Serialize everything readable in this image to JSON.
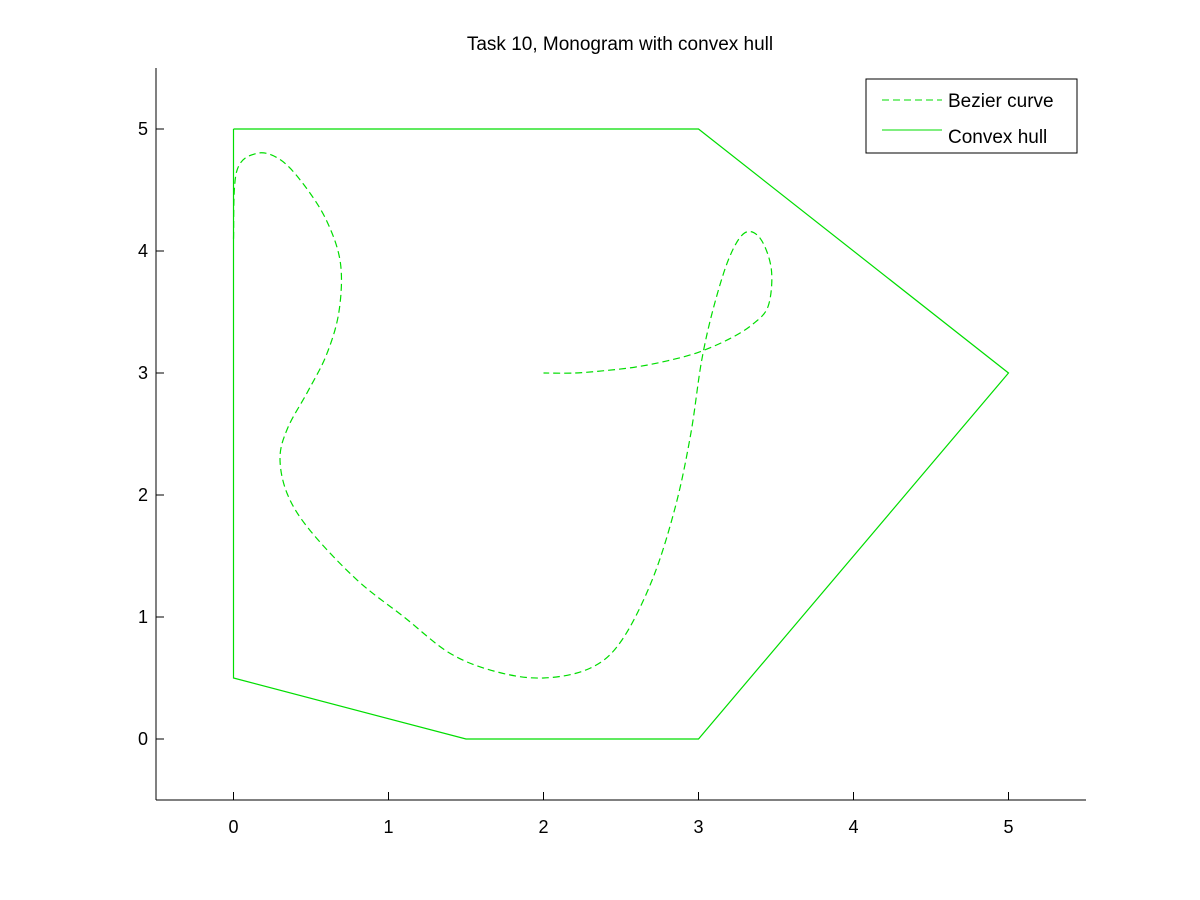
{
  "chart_data": {
    "type": "line",
    "title": "Task 10, Monogram with convex hull",
    "xlabel": "",
    "ylabel": "",
    "xlim": [
      -0.5,
      5.5
    ],
    "ylim": [
      -0.5,
      5.5
    ],
    "x_ticks": [
      0,
      1,
      2,
      3,
      4,
      5
    ],
    "y_ticks": [
      0,
      1,
      2,
      3,
      4,
      5
    ],
    "x_tick_labels": [
      "0",
      "1",
      "2",
      "3",
      "4",
      "5"
    ],
    "y_tick_labels": [
      "0",
      "1",
      "2",
      "3",
      "4",
      "5"
    ],
    "grid": false,
    "legend_position": "top-right",
    "series": [
      {
        "name": "Bezier curve",
        "style": "dashed",
        "color": "#00dd00",
        "x": [
          0.0,
          0.02,
          0.15,
          0.3,
          0.45,
          0.6,
          0.69,
          0.68,
          0.6,
          0.48,
          0.35,
          0.3,
          0.35,
          0.5,
          0.8,
          1.1,
          1.4,
          1.7,
          2.0,
          2.3,
          2.5,
          2.7,
          2.85,
          2.95,
          3.02,
          3.1,
          3.2,
          3.3,
          3.4,
          3.47,
          3.45,
          3.35,
          3.2,
          3.0,
          2.8,
          2.6,
          2.4,
          2.2,
          2.0
        ],
        "y": [
          4.1,
          4.65,
          4.8,
          4.75,
          4.55,
          4.25,
          3.9,
          3.5,
          3.15,
          2.85,
          2.55,
          2.3,
          2.0,
          1.7,
          1.3,
          1.0,
          0.7,
          0.55,
          0.5,
          0.58,
          0.8,
          1.3,
          1.9,
          2.5,
          3.1,
          3.55,
          3.95,
          4.15,
          4.1,
          3.85,
          3.55,
          3.4,
          3.28,
          3.17,
          3.1,
          3.05,
          3.02,
          3.0,
          3.0
        ]
      },
      {
        "name": "Convex hull",
        "style": "solid",
        "color": "#00dd00",
        "x": [
          0,
          3,
          5,
          3,
          1.5,
          0,
          0
        ],
        "y": [
          5,
          5,
          3,
          0,
          0,
          0.5,
          5
        ]
      }
    ]
  }
}
